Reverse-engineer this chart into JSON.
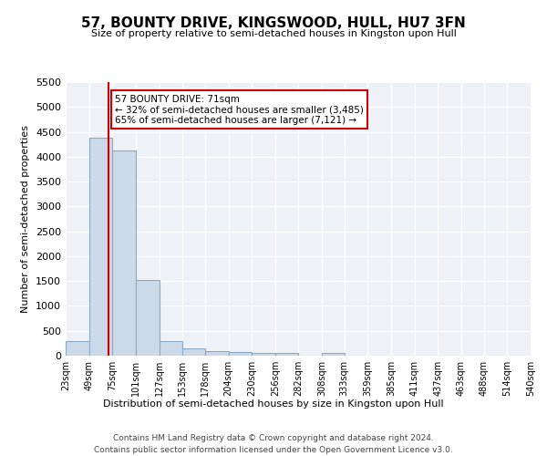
{
  "title": "57, BOUNTY DRIVE, KINGSWOOD, HULL, HU7 3FN",
  "subtitle": "Size of property relative to semi-detached houses in Kingston upon Hull",
  "xlabel": "Distribution of semi-detached houses by size in Kingston upon Hull",
  "ylabel": "Number of semi-detached properties",
  "footnote1": "Contains HM Land Registry data © Crown copyright and database right 2024.",
  "footnote2": "Contains public sector information licensed under the Open Government Licence v3.0.",
  "annotation_line1": "57 BOUNTY DRIVE: 71sqm",
  "annotation_line2": "← 32% of semi-detached houses are smaller (3,485)",
  "annotation_line3": "65% of semi-detached houses are larger (7,121) →",
  "bar_edges": [
    23,
    49,
    75,
    101,
    127,
    153,
    178,
    204,
    230,
    256,
    282,
    308,
    333,
    359,
    385,
    411,
    437,
    463,
    488,
    514,
    540
  ],
  "bar_heights": [
    290,
    4390,
    4120,
    1530,
    290,
    150,
    100,
    75,
    50,
    50,
    0,
    50,
    0,
    0,
    0,
    0,
    0,
    0,
    0,
    0
  ],
  "property_size": 71,
  "bar_color": "#ccd9e8",
  "bar_edge_color": "#8aaac8",
  "line_color": "#cc0000",
  "annotation_box_color": "#cc0000",
  "bg_color": "#eef2f7",
  "ylim": [
    0,
    5500
  ],
  "yticks": [
    0,
    500,
    1000,
    1500,
    2000,
    2500,
    3000,
    3500,
    4000,
    4500,
    5000,
    5500
  ]
}
